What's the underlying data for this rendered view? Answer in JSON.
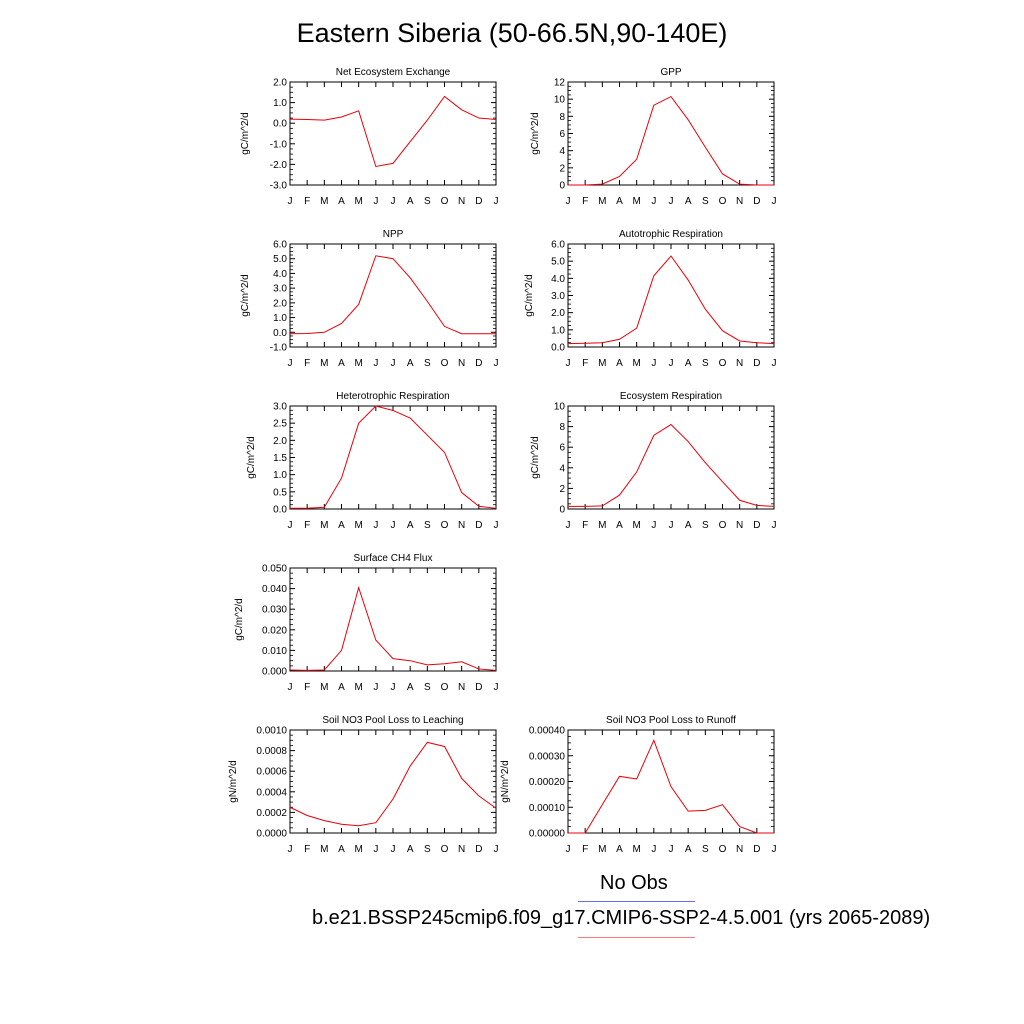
{
  "figure": {
    "title": "Eastern Siberia (50-66.5N,90-140E)",
    "legend_obs_label": "No Obs",
    "legend_case_label": "b.e21.BSSP245cmip6.f09_g17.CMIP6-SSP2-4.5.001 (yrs 2065-2089)",
    "colors": {
      "series": "#e8000b",
      "obs_line": "#6b6bff",
      "case_line": "#ff7b7b"
    }
  },
  "chart_data": [
    {
      "type": "line",
      "title": "Net Ecosystem Exchange",
      "ylabel": "gC/m^2/d",
      "categories": [
        "J",
        "F",
        "M",
        "A",
        "M",
        "J",
        "J",
        "A",
        "S",
        "O",
        "N",
        "D",
        "J"
      ],
      "values": [
        0.2,
        0.18,
        0.15,
        0.3,
        0.6,
        -2.1,
        -1.95,
        -0.9,
        0.15,
        1.3,
        0.65,
        0.25,
        0.18
      ],
      "ylim": [
        -3.0,
        2.0
      ],
      "yticks": [
        "2.0",
        "1.0",
        "0.0",
        "-1.0",
        "-2.0",
        "-3.0"
      ]
    },
    {
      "type": "line",
      "title": "GPP",
      "ylabel": "gC/m^2/d",
      "categories": [
        "J",
        "F",
        "M",
        "A",
        "M",
        "J",
        "J",
        "A",
        "S",
        "O",
        "N",
        "D",
        "J"
      ],
      "values": [
        0.0,
        0.0,
        0.1,
        1.0,
        3.0,
        9.3,
        10.3,
        7.6,
        4.4,
        1.3,
        0.1,
        0.0,
        0.0
      ],
      "ylim": [
        0,
        12
      ],
      "yticks": [
        "12",
        "10",
        "8",
        "6",
        "4",
        "2",
        "0"
      ]
    },
    {
      "type": "line",
      "title": "NPP",
      "ylabel": "gC/m^2/d",
      "categories": [
        "J",
        "F",
        "M",
        "A",
        "M",
        "J",
        "J",
        "A",
        "S",
        "O",
        "N",
        "D",
        "J"
      ],
      "values": [
        -0.1,
        -0.08,
        0.0,
        0.6,
        1.9,
        5.2,
        5.0,
        3.7,
        2.1,
        0.4,
        -0.1,
        -0.1,
        -0.1
      ],
      "ylim": [
        -1.0,
        6.0
      ],
      "yticks": [
        "6.0",
        "5.0",
        "4.0",
        "3.0",
        "2.0",
        "1.0",
        "0.0",
        "-1.0"
      ]
    },
    {
      "type": "line",
      "title": "Autotrophic Respiration",
      "ylabel": "gC/m^2/d",
      "categories": [
        "J",
        "F",
        "M",
        "A",
        "M",
        "J",
        "J",
        "A",
        "S",
        "O",
        "N",
        "D",
        "J"
      ],
      "values": [
        0.2,
        0.22,
        0.25,
        0.45,
        1.1,
        4.15,
        5.3,
        3.9,
        2.2,
        0.95,
        0.35,
        0.25,
        0.2
      ],
      "ylim": [
        0,
        6.0
      ],
      "yticks": [
        "6.0",
        "5.0",
        "4.0",
        "3.0",
        "2.0",
        "1.0",
        "0.0"
      ]
    },
    {
      "type": "line",
      "title": "Heterotrophic Respiration",
      "ylabel": "gC/m^2/d",
      "categories": [
        "J",
        "F",
        "M",
        "A",
        "M",
        "J",
        "J",
        "A",
        "S",
        "O",
        "N",
        "D",
        "J"
      ],
      "values": [
        0.02,
        0.02,
        0.05,
        0.9,
        2.5,
        3.0,
        2.87,
        2.65,
        2.15,
        1.65,
        0.48,
        0.08,
        0.02
      ],
      "ylim": [
        0,
        3.0
      ],
      "yticks": [
        "3.0",
        "2.5",
        "2.0",
        "1.5",
        "1.0",
        "0.5",
        "0.0"
      ]
    },
    {
      "type": "line",
      "title": "Ecosystem Respiration",
      "ylabel": "gC/m^2/d",
      "categories": [
        "J",
        "F",
        "M",
        "A",
        "M",
        "J",
        "J",
        "A",
        "S",
        "O",
        "N",
        "D",
        "J"
      ],
      "values": [
        0.25,
        0.25,
        0.3,
        1.35,
        3.6,
        7.15,
        8.2,
        6.55,
        4.5,
        2.65,
        0.85,
        0.35,
        0.25
      ],
      "ylim": [
        0,
        10
      ],
      "yticks": [
        "10",
        "8",
        "6",
        "4",
        "2",
        "0"
      ]
    },
    {
      "type": "line",
      "title": "Surface CH4 Flux",
      "ylabel": "gC/m^2/d",
      "categories": [
        "J",
        "F",
        "M",
        "A",
        "M",
        "J",
        "J",
        "A",
        "S",
        "O",
        "N",
        "D",
        "J"
      ],
      "values": [
        0.0005,
        0.0003,
        0.0005,
        0.01,
        0.0405,
        0.015,
        0.006,
        0.005,
        0.003,
        0.0035,
        0.0045,
        0.001,
        0.0003
      ],
      "ylim": [
        0,
        0.05
      ],
      "yticks": [
        "0.050",
        "0.040",
        "0.030",
        "0.020",
        "0.010",
        "0.000"
      ]
    },
    {
      "type": "line",
      "title": "Soil NO3 Pool Loss to Leaching",
      "ylabel": "gN/m^2/d",
      "categories": [
        "J",
        "F",
        "M",
        "A",
        "M",
        "J",
        "J",
        "A",
        "S",
        "O",
        "N",
        "D",
        "J"
      ],
      "values": [
        0.00025,
        0.00017,
        0.00012,
        8.5e-05,
        7e-05,
        0.0001,
        0.00033,
        0.00065,
        0.00088,
        0.00084,
        0.00053,
        0.00036,
        0.00024
      ],
      "ylim": [
        0,
        0.001
      ],
      "yticks": [
        "0.0010",
        "0.0008",
        "0.0006",
        "0.0004",
        "0.0002",
        "0.0000"
      ]
    },
    {
      "type": "line",
      "title": "Soil NO3 Pool Loss to Runoff",
      "ylabel": "gN/m^2/d",
      "categories": [
        "J",
        "F",
        "M",
        "A",
        "M",
        "J",
        "J",
        "A",
        "S",
        "O",
        "N",
        "D",
        "J"
      ],
      "values": [
        -1e-05,
        0.0,
        0.00011,
        0.00022,
        0.00021,
        0.00036,
        0.00018,
        8.5e-05,
        8.8e-05,
        0.00011,
        2.5e-05,
        0.0,
        0.0
      ],
      "ylim": [
        0,
        0.0004
      ],
      "yticks": [
        "0.00040",
        "0.00030",
        "0.00020",
        "0.00010",
        "0.00000"
      ]
    }
  ]
}
